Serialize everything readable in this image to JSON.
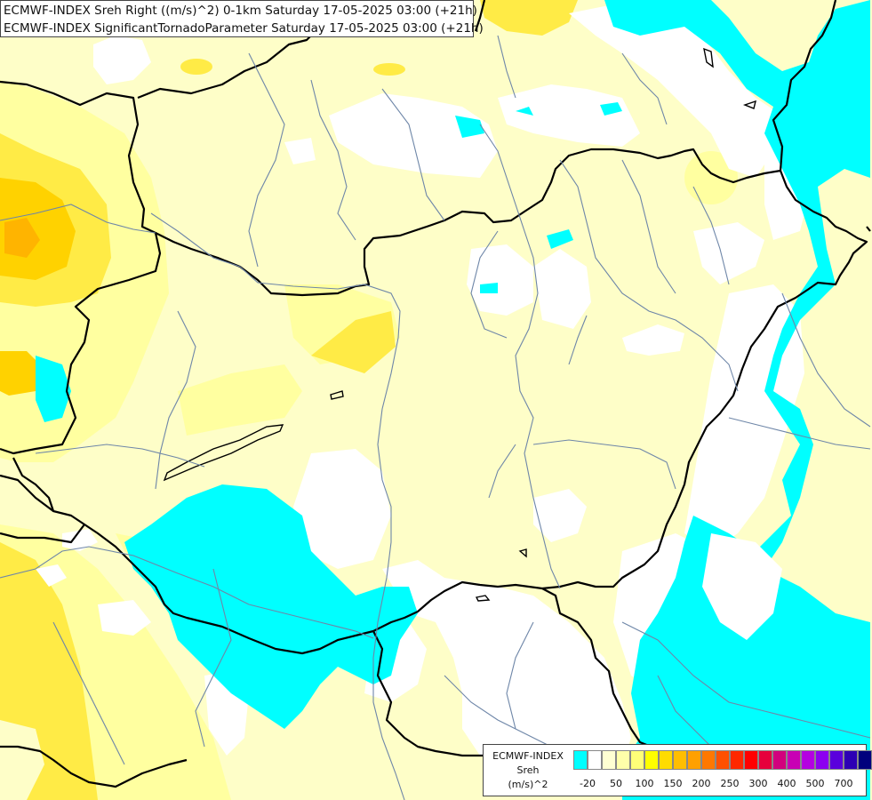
{
  "header": {
    "line1": "ECMWF-INDEX Sreh Right ((m/s)^2) 0-1km Saturday 17-05-2025 03:00 (+21h)",
    "line2": "ECMWF-INDEX SignificantTornadoParameter Saturday 17-05-2025 03:00 (+21h)"
  },
  "legend": {
    "model": "ECMWF-INDEX",
    "parameter": "Sreh",
    "unit": "(m/s)^2",
    "colors": [
      "#00ffff",
      "#ffffff",
      "#ffffd2",
      "#ffffaa",
      "#ffff78",
      "#ffff00",
      "#ffdc00",
      "#ffbe00",
      "#ffa000",
      "#ff7800",
      "#ff5000",
      "#ff2800",
      "#ff0000",
      "#e6003c",
      "#d2007d",
      "#c800b4",
      "#b400e1",
      "#8c00f0",
      "#5a00dc",
      "#2d00b4",
      "#00007d"
    ],
    "ticks": [
      "-20",
      "50",
      "100",
      "150",
      "200",
      "250",
      "300",
      "400",
      "500",
      "700"
    ]
  },
  "colors": {
    "cyan": "#00ffff",
    "white": "#ffffff",
    "pale_yellow": "#fefec8",
    "light_yellow": "#ffffa0",
    "yellow": "#ffeb46",
    "gold": "#ffd200",
    "orange": "#ffb400",
    "border": "#000000",
    "river": "#6e86a8"
  }
}
